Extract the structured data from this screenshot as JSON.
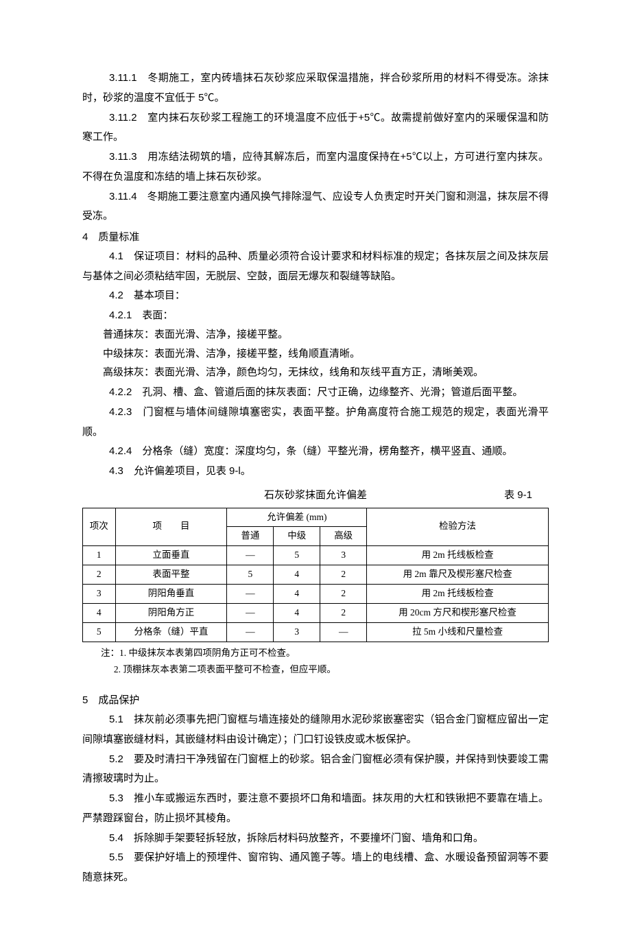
{
  "section3": {
    "p3_11_1": "3.11.1　冬期施工，室内砖墙抹石灰砂浆应采取保温措施，拌合砂浆所用的材料不得受冻。涂抹时，砂浆的温度不宜低于 5℃。",
    "p3_11_2": "3.11.2　室内抹石灰砂浆工程施工的环境温度不应低于+5℃。故需提前做好室内的采暖保温和防寒工作。",
    "p3_11_3": "3.11.3　用冻结法砌筑的墙，应待其解冻后，而室内温度保持在+5℃以上，方可进行室内抹灰。不得在负温度和冻结的墙上抹石灰砂浆。",
    "p3_11_4": "3.11.4　冬期施工要注意室内通风换气排除湿气、应设专人负责定时开关门窗和测温，抹灰层不得受冻。"
  },
  "section4": {
    "heading": "4　质量标准",
    "p4_1": "4.1　保证项目：材料的品种、质量必须符合设计要求和材料标准的规定；各抹灰层之间及抹灰层与基体之间必须粘结牢固，无脱层、空鼓，面层无爆灰和裂缝等缺陷。",
    "p4_2": "4.2　基本项目：",
    "p4_2_1": "4.2.1　表面：",
    "p_normal": "普通抹灰：表面光滑、洁净，接槎平整。",
    "p_mid": "中级抹灰：表面光滑、洁净，接槎平整，线角顺直清晰。",
    "p_high": "高级抹灰：表面光滑、洁净，颜色均匀，无抹纹，线角和灰线平直方正，清晰美观。",
    "p4_2_2": "4.2.2　孔洞、槽、盒、管道后面的抹灰表面：尺寸正确，边缘整齐、光滑；管道后面平整。",
    "p4_2_3": "4.2.3　门窗框与墙体间缝隙填塞密实，表面平整。护角高度符合施工规范的规定，表面光滑平顺。",
    "p4_2_4": "4.2.4　分格条（缝）宽度：深度均匀，条（缝）平整光滑，楞角整齐，横平竖直、通顺。",
    "p4_3": "4.3　允许偏差项目，见表 9-l。"
  },
  "table": {
    "title": "石灰砂浆抹面允许偏差",
    "ref": "表 9-1",
    "header": {
      "col1": "项次",
      "col2": "项　　目",
      "col3": "允许偏差 (mm)",
      "col4": "检验方法",
      "sub1": "普通",
      "sub2": "中级",
      "sub3": "高级"
    },
    "rows": [
      {
        "no": "1",
        "item": "立面垂直",
        "a": "—",
        "b": "5",
        "c": "3",
        "method": "用 2m 托线板检查"
      },
      {
        "no": "2",
        "item": "表面平整",
        "a": "5",
        "b": "4",
        "c": "2",
        "method": "用 2m 靠尺及楔形塞尺检查"
      },
      {
        "no": "3",
        "item": "阴阳角垂直",
        "a": "—",
        "b": "4",
        "c": "2",
        "method": "用 2m 托线板检查"
      },
      {
        "no": "4",
        "item": "阴阳角方正",
        "a": "—",
        "b": "4",
        "c": "2",
        "method": "用 20cm 方尺和楔形塞尺检查"
      },
      {
        "no": "5",
        "item": "分格条（缝）平直",
        "a": "—",
        "b": "3",
        "c": "—",
        "method": "拉 5m 小线和尺量检查"
      }
    ],
    "notes": {
      "n1": "注：1. 中级抹灰本表第四项阴角方正可不检查。",
      "n2": "2. 顶棚抹灰本表第二项表面平整可不检查，但应平顺。"
    },
    "col_widths": {
      "c1": "7%",
      "c2": "24%",
      "c3": "10%",
      "c4": "10%",
      "c5": "10%",
      "c6": "39%"
    }
  },
  "section5": {
    "heading": "5　成品保护",
    "p5_1": "5.1　抹灰前必须事先把门窗框与墙连接处的缝隙用水泥砂浆嵌塞密实（铝合金门窗框应留出一定间隙填塞嵌缝材料，其嵌缝材料由设计确定）；门口钉设铁皮或木板保护。",
    "p5_2": "5.2　要及时清扫干净残留在门窗框上的砂浆。铝合金门窗框必须有保护膜，并保持到快要竣工需清擦玻璃时为止。",
    "p5_3": "5.3　推小车或搬运东西时，要注意不要损坏口角和墙面。抹灰用的大杠和铁锹把不要靠在墙上。严禁蹬踩窗台，防止损坏其棱角。",
    "p5_4": "5.4　拆除脚手架要轻拆轻放，拆除后材料码放整齐，不要撞坏门窗、墙角和口角。",
    "p5_5": "5.5　要保护好墙上的预埋件、窗帘钩、通风篦子等。墙上的电线槽、盒、水暖设备预留洞等不要随意抹死。"
  }
}
